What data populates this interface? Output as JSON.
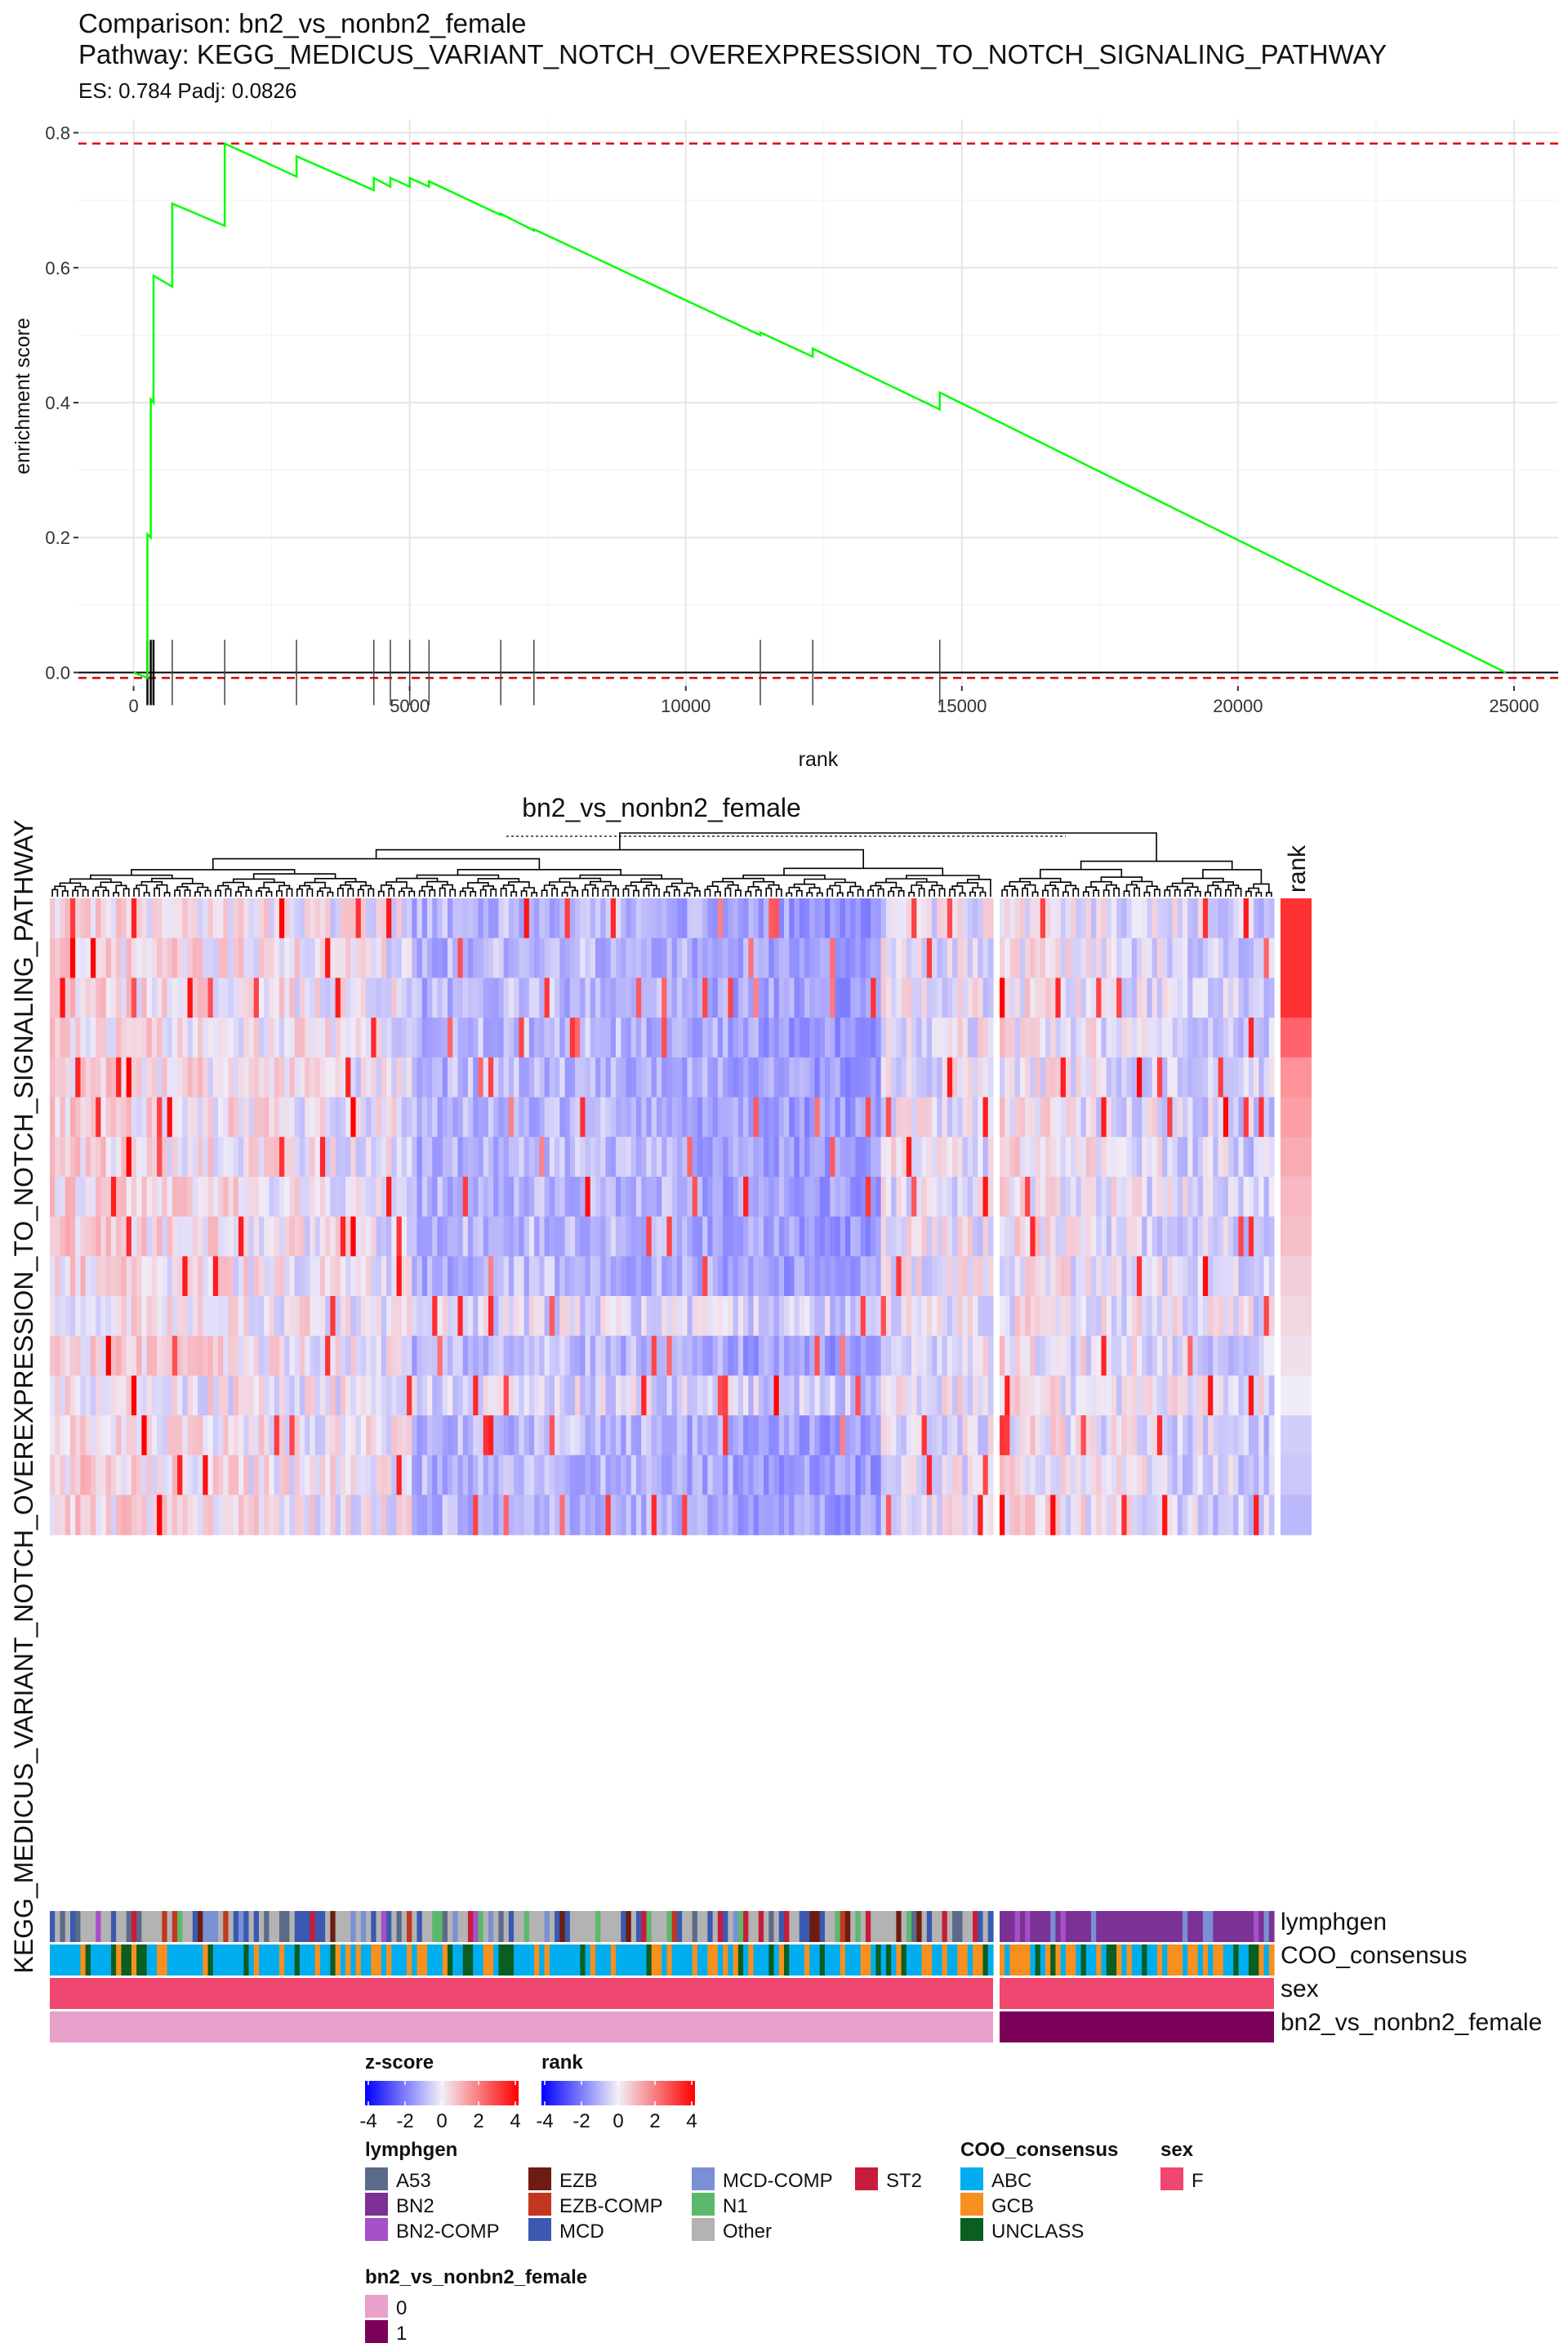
{
  "chart_data": [
    {
      "type": "line",
      "title": "Comparison: bn2_vs_nonbn2_female",
      "subtitle": "Pathway: KEGG_MEDICUS_VARIANT_NOTCH_OVEREXPRESSION_TO_NOTCH_SIGNALING_PATHWAY",
      "stats": "ES: 0.784 Padj: 0.0826",
      "xlabel": "rank",
      "ylabel": "enrichment score",
      "xlim": [
        -1000,
        25800
      ],
      "ylim": [
        -0.02,
        0.82
      ],
      "x_ticks": [
        0,
        5000,
        10000,
        15000,
        20000,
        25000
      ],
      "x_tick_labels": [
        "0",
        "5000",
        "10000",
        "15000",
        "20000",
        "25000"
      ],
      "y_ticks": [
        0.0,
        0.2,
        0.4,
        0.6,
        0.8
      ],
      "y_tick_labels": [
        "0.0",
        "0.2",
        "0.4",
        "0.6",
        "0.8"
      ],
      "grid": true,
      "reference_lines": [
        0.784,
        -0.008
      ],
      "series": [
        {
          "x": [
            0,
            250,
            250,
            310,
            310,
            360,
            360,
            700,
            700,
            1650,
            1650,
            2950,
            2950,
            4350,
            4350,
            4650,
            4650,
            5000,
            5000,
            5350,
            5350,
            6650,
            6650,
            7250,
            7250,
            11350,
            11350,
            12300,
            12300,
            14600,
            14600,
            24850
          ],
          "y": [
            0,
            -0.008,
            0.205,
            0.2,
            0.405,
            0.4,
            0.588,
            0.572,
            0.695,
            0.662,
            0.784,
            0.735,
            0.765,
            0.715,
            0.733,
            0.72,
            0.733,
            0.72,
            0.733,
            0.72,
            0.728,
            0.678,
            0.68,
            0.655,
            0.657,
            0.5,
            0.504,
            0.468,
            0.48,
            0.39,
            0.415,
            0.0
          ]
        }
      ],
      "hit_ranks": [
        250,
        310,
        360,
        700,
        1650,
        2950,
        4350,
        4650,
        5000,
        5350,
        6650,
        7250,
        11350,
        12300,
        14600
      ]
    },
    {
      "type": "heatmap",
      "title": "bn2_vs_nonbn2_female",
      "row_title": "KEGG_MEDICUS_VARIANT_NOTCH_OVEREXPRESSION_TO_NOTCH_SIGNALING_PATHWAY",
      "n_rows": 16,
      "rank_label": "rank",
      "rank_values": [
        3.0,
        3.0,
        3.0,
        2.0,
        1.2,
        1.0,
        0.8,
        0.6,
        0.5,
        0.3,
        0.2,
        0.1,
        0.0,
        -0.3,
        -0.4,
        -0.6
      ],
      "annotation_rows": [
        "lymphgen",
        "COO_consensus",
        "sex",
        "bn2_vs_nonbn2_female"
      ]
    }
  ],
  "legends": {
    "zscore": {
      "title": "z-score",
      "ticks": [
        "-4",
        "-2",
        "0",
        "2",
        "4"
      ]
    },
    "rank": {
      "title": "rank",
      "ticks": [
        "-4",
        "-2",
        "0",
        "2",
        "4"
      ]
    },
    "lymphgen": {
      "title": "lymphgen",
      "items": [
        {
          "label": "A53",
          "color": "#5c6a8a"
        },
        {
          "label": "BN2",
          "color": "#7b3294"
        },
        {
          "label": "BN2-COMP",
          "color": "#a64fc9"
        },
        {
          "label": "EZB",
          "color": "#6e1c10"
        },
        {
          "label": "EZB-COMP",
          "color": "#c2371f"
        },
        {
          "label": "MCD",
          "color": "#3a59b0"
        },
        {
          "label": "MCD-COMP",
          "color": "#7a8fd4"
        },
        {
          "label": "N1",
          "color": "#5cb86a"
        },
        {
          "label": "Other",
          "color": "#b3b3b3"
        },
        {
          "label": "ST2",
          "color": "#c81c3c"
        }
      ]
    },
    "coo": {
      "title": "COO_consensus",
      "items": [
        {
          "label": "ABC",
          "color": "#00aeef"
        },
        {
          "label": "GCB",
          "color": "#f7901e"
        },
        {
          "label": "UNCLASS",
          "color": "#0a5e22"
        }
      ]
    },
    "sex": {
      "title": "sex",
      "items": [
        {
          "label": "F",
          "color": "#ef476f"
        }
      ]
    },
    "group": {
      "title": "bn2_vs_nonbn2_female",
      "items": [
        {
          "label": "0",
          "color": "#e7a1cb"
        },
        {
          "label": "1",
          "color": "#7a0058"
        }
      ]
    }
  }
}
